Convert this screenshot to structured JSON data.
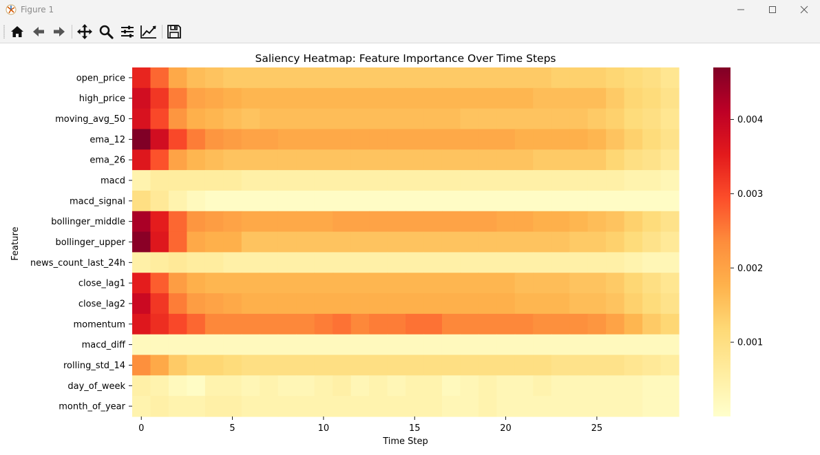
{
  "window": {
    "title": "Figure 1",
    "icons": [
      "matplotlib-icon",
      "minimize-icon",
      "maximize-icon",
      "close-icon"
    ]
  },
  "toolbar": {
    "buttons": [
      {
        "name": "home",
        "icon": "home-icon"
      },
      {
        "name": "back",
        "icon": "back-arrow-icon"
      },
      {
        "name": "forward",
        "icon": "forward-arrow-icon"
      },
      {
        "name": "pan",
        "icon": "move-icon"
      },
      {
        "name": "zoom",
        "icon": "zoom-icon"
      },
      {
        "name": "configure-subplots",
        "icon": "sliders-icon"
      },
      {
        "name": "edit-axis",
        "icon": "line-chart-icon"
      },
      {
        "name": "save",
        "icon": "save-icon"
      }
    ]
  },
  "chart_data": {
    "type": "heatmap",
    "title": "Saliency Heatmap: Feature Importance Over Time Steps",
    "xlabel": "Time Step",
    "ylabel": "Feature",
    "colormap": "YlOrRd",
    "rows": [
      "open_price",
      "high_price",
      "moving_avg_50",
      "ema_12",
      "ema_26",
      "macd",
      "macd_signal",
      "bollinger_middle",
      "bollinger_upper",
      "news_count_last_24h",
      "close_lag1",
      "close_lag2",
      "momentum",
      "macd_diff",
      "rolling_std_14",
      "day_of_week",
      "month_of_year"
    ],
    "columns": [
      0,
      1,
      2,
      3,
      4,
      5,
      6,
      7,
      8,
      9,
      10,
      11,
      12,
      13,
      14,
      15,
      16,
      17,
      18,
      19,
      20,
      21,
      22,
      23,
      24,
      25,
      26,
      27,
      28,
      29
    ],
    "x_ticks": [
      0,
      5,
      10,
      15,
      20,
      25
    ],
    "x_tick_labels": [
      "0",
      "5",
      "10",
      "15",
      "20",
      "25"
    ],
    "colorbar": {
      "vmin": 0.0,
      "vmax": 0.0047,
      "ticks": [
        0.001,
        0.002,
        0.003,
        0.004
      ],
      "tick_labels": [
        "0.001",
        "0.002",
        "0.003",
        "0.004"
      ]
    },
    "values": [
      [
        0.0034,
        0.0027,
        0.0019,
        0.0016,
        0.0015,
        0.0014,
        0.0014,
        0.0014,
        0.0014,
        0.0014,
        0.0014,
        0.0014,
        0.0014,
        0.0014,
        0.0014,
        0.0014,
        0.0014,
        0.0014,
        0.0014,
        0.0014,
        0.0014,
        0.0014,
        0.0014,
        0.0013,
        0.0013,
        0.0013,
        0.0012,
        0.0011,
        0.001,
        0.0008
      ],
      [
        0.0038,
        0.0032,
        0.0025,
        0.002,
        0.0019,
        0.0018,
        0.0017,
        0.0017,
        0.0017,
        0.0017,
        0.0017,
        0.0017,
        0.0017,
        0.0017,
        0.0017,
        0.0017,
        0.0017,
        0.0017,
        0.0017,
        0.0017,
        0.0017,
        0.0017,
        0.0016,
        0.0016,
        0.0016,
        0.0016,
        0.0014,
        0.0012,
        0.0011,
        0.0009
      ],
      [
        0.0037,
        0.003,
        0.0022,
        0.0018,
        0.0017,
        0.0016,
        0.0015,
        0.0016,
        0.0016,
        0.0016,
        0.0016,
        0.0016,
        0.0016,
        0.0016,
        0.0016,
        0.0016,
        0.0016,
        0.0016,
        0.0015,
        0.0015,
        0.0015,
        0.0015,
        0.0015,
        0.0015,
        0.0015,
        0.0014,
        0.0013,
        0.0011,
        0.001,
        0.0008
      ],
      [
        0.0047,
        0.0038,
        0.003,
        0.0025,
        0.0022,
        0.0021,
        0.002,
        0.002,
        0.0019,
        0.0019,
        0.0019,
        0.0019,
        0.0019,
        0.0019,
        0.0019,
        0.0019,
        0.0019,
        0.0019,
        0.0019,
        0.0019,
        0.0019,
        0.0018,
        0.0018,
        0.0018,
        0.0018,
        0.0017,
        0.0015,
        0.0013,
        0.0011,
        0.0009
      ],
      [
        0.0036,
        0.0029,
        0.002,
        0.0017,
        0.0016,
        0.0015,
        0.0015,
        0.0015,
        0.0015,
        0.0015,
        0.0015,
        0.0015,
        0.0015,
        0.0015,
        0.0015,
        0.0015,
        0.0015,
        0.0015,
        0.0015,
        0.0015,
        0.0015,
        0.0015,
        0.0014,
        0.0014,
        0.0014,
        0.0014,
        0.0012,
        0.001,
        0.0009,
        0.0007
      ],
      [
        0.0004,
        0.0006,
        0.0006,
        0.0006,
        0.0006,
        0.0006,
        0.0005,
        0.0005,
        0.0005,
        0.0005,
        0.0005,
        0.0005,
        0.0005,
        0.0005,
        0.0005,
        0.0005,
        0.0005,
        0.0005,
        0.0005,
        0.0005,
        0.0005,
        0.0005,
        0.0005,
        0.0005,
        0.0005,
        0.0005,
        0.0005,
        0.0004,
        0.0004,
        0.0003
      ],
      [
        0.001,
        0.0007,
        0.0004,
        0.0002,
        0.0001,
        0.0001,
        0.0001,
        0.0001,
        0.0001,
        0.0001,
        0.0001,
        0.0001,
        0.0001,
        0.0001,
        0.0001,
        0.0001,
        0.0001,
        0.0001,
        0.0001,
        0.0001,
        0.0001,
        0.0001,
        0.0001,
        0.0001,
        0.0001,
        0.0001,
        0.0001,
        0.0001,
        0.0001,
        0.0001
      ],
      [
        0.0043,
        0.0035,
        0.0027,
        0.0022,
        0.0021,
        0.002,
        0.0019,
        0.0019,
        0.0019,
        0.0019,
        0.0019,
        0.002,
        0.002,
        0.002,
        0.002,
        0.002,
        0.002,
        0.002,
        0.002,
        0.002,
        0.0019,
        0.0019,
        0.0018,
        0.0018,
        0.0017,
        0.0016,
        0.0015,
        0.0013,
        0.0011,
        0.0009
      ],
      [
        0.0046,
        0.0036,
        0.0027,
        0.0019,
        0.0018,
        0.0018,
        0.0015,
        0.0015,
        0.0015,
        0.0015,
        0.0015,
        0.0015,
        0.0015,
        0.0015,
        0.0015,
        0.0015,
        0.0015,
        0.0015,
        0.0015,
        0.0015,
        0.0015,
        0.0015,
        0.0015,
        0.0015,
        0.0014,
        0.0014,
        0.0013,
        0.0011,
        0.0009,
        0.0007
      ],
      [
        0.0005,
        0.0006,
        0.0007,
        0.0006,
        0.0006,
        0.0005,
        0.0005,
        0.0005,
        0.0005,
        0.0005,
        0.0005,
        0.0005,
        0.0005,
        0.0005,
        0.0005,
        0.0005,
        0.0005,
        0.0005,
        0.0005,
        0.0005,
        0.0005,
        0.0005,
        0.0005,
        0.0005,
        0.0005,
        0.0005,
        0.0005,
        0.0004,
        0.0003,
        0.0003
      ],
      [
        0.0035,
        0.0028,
        0.0021,
        0.0018,
        0.0017,
        0.0017,
        0.0017,
        0.0017,
        0.0017,
        0.0017,
        0.0017,
        0.0017,
        0.0017,
        0.0017,
        0.0017,
        0.0017,
        0.0017,
        0.0017,
        0.0017,
        0.0017,
        0.0017,
        0.0016,
        0.0016,
        0.0016,
        0.0015,
        0.0015,
        0.0014,
        0.0012,
        0.001,
        0.0008
      ],
      [
        0.0039,
        0.0032,
        0.0025,
        0.0021,
        0.002,
        0.0019,
        0.0018,
        0.0018,
        0.0018,
        0.0018,
        0.0018,
        0.0018,
        0.0018,
        0.0018,
        0.0018,
        0.0018,
        0.0018,
        0.0018,
        0.0018,
        0.0018,
        0.0018,
        0.0017,
        0.0017,
        0.0017,
        0.0016,
        0.0016,
        0.0015,
        0.0013,
        0.0011,
        0.0009
      ],
      [
        0.0036,
        0.0033,
        0.003,
        0.0027,
        0.0024,
        0.0024,
        0.0024,
        0.0024,
        0.0024,
        0.0024,
        0.0025,
        0.0026,
        0.0024,
        0.0025,
        0.0025,
        0.0026,
        0.0026,
        0.0024,
        0.0024,
        0.0024,
        0.0024,
        0.0024,
        0.0023,
        0.0023,
        0.0023,
        0.0022,
        0.002,
        0.0017,
        0.0014,
        0.0012
      ],
      [
        0.0002,
        0.0002,
        0.0002,
        0.0002,
        0.0002,
        0.0002,
        0.0002,
        0.0002,
        0.0002,
        0.0002,
        0.0002,
        0.0002,
        0.0002,
        0.0002,
        0.0002,
        0.0002,
        0.0002,
        0.0002,
        0.0002,
        0.0002,
        0.0002,
        0.0002,
        0.0002,
        0.0002,
        0.0002,
        0.0002,
        0.0002,
        0.0002,
        0.0002,
        0.0002
      ],
      [
        0.0023,
        0.0019,
        0.0014,
        0.0012,
        0.0012,
        0.0011,
        0.001,
        0.001,
        0.001,
        0.001,
        0.001,
        0.001,
        0.001,
        0.001,
        0.001,
        0.001,
        0.001,
        0.001,
        0.001,
        0.001,
        0.001,
        0.001,
        0.001,
        0.0009,
        0.0009,
        0.0009,
        0.0009,
        0.0008,
        0.0007,
        0.0006
      ],
      [
        0.0005,
        0.0004,
        0.0002,
        0.0001,
        0.0004,
        0.0004,
        0.0003,
        0.0004,
        0.0003,
        0.0003,
        0.0004,
        0.0005,
        0.0003,
        0.0004,
        0.0003,
        0.0004,
        0.0004,
        0.0002,
        0.0003,
        0.0004,
        0.0003,
        0.0003,
        0.0004,
        0.0003,
        0.0003,
        0.0003,
        0.0003,
        0.0003,
        0.0002,
        0.0002
      ],
      [
        0.0004,
        0.0005,
        0.0004,
        0.0004,
        0.0005,
        0.0005,
        0.0004,
        0.0004,
        0.0004,
        0.0004,
        0.0004,
        0.0004,
        0.0004,
        0.0004,
        0.0004,
        0.0004,
        0.0004,
        0.0003,
        0.0003,
        0.0004,
        0.0003,
        0.0003,
        0.0003,
        0.0003,
        0.0003,
        0.0003,
        0.0003,
        0.0003,
        0.0002,
        0.0002
      ]
    ]
  }
}
